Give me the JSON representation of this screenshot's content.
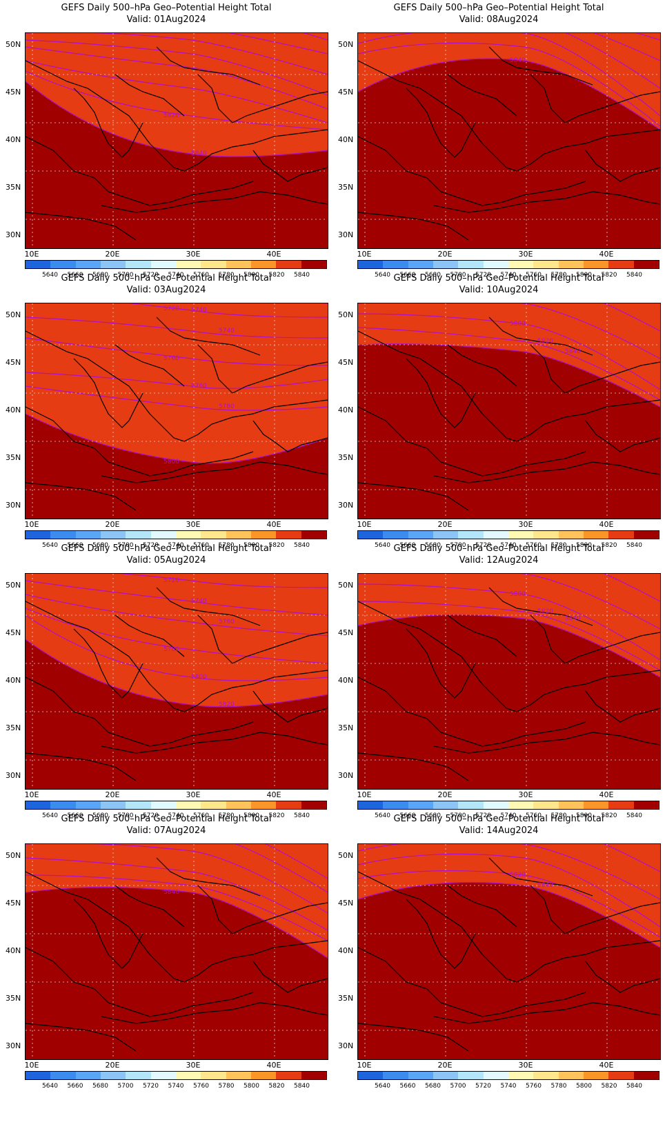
{
  "colors": {
    "bands": [
      "#1e64dc",
      "#3c8cf0",
      "#5aa5f5",
      "#8cc4f5",
      "#b4e6fa",
      "#e2fafe",
      "#fefab4",
      "#fee68c",
      "#fec35a",
      "#fa9628",
      "#e63c14",
      "#a00000"
    ],
    "contour": "#b010c8"
  },
  "colorbar": {
    "labels": [
      "5640",
      "5660",
      "5680",
      "5700",
      "5720",
      "5740",
      "5760",
      "5780",
      "5800",
      "5820",
      "5840"
    ]
  },
  "axes": {
    "lat_labels": [
      "50N",
      "45N",
      "40N",
      "35N",
      "30N"
    ],
    "lon_labels": [
      "10E",
      "20E",
      "30E",
      "40E"
    ]
  },
  "panels": [
    {
      "title": "GEFS Daily 500–hPa Geo–Potential Height Total",
      "valid": "Valid: 01Aug2024",
      "contour_labels": [
        "5820",
        "5840"
      ]
    },
    {
      "title": "GEFS Daily 500–hPa Geo–Potential Height Total",
      "valid": "Valid: 08Aug2024",
      "contour_labels": [
        "5840"
      ]
    },
    {
      "title": "GEFS Daily 500–hPa Geo–Potential Height Total",
      "valid": "Valid: 03Aug2024",
      "contour_labels": [
        "5720",
        "5740",
        "5740",
        "5760",
        "5760",
        "5780",
        "5800"
      ]
    },
    {
      "title": "GEFS Daily 500–hPa Geo–Potential Height Total",
      "valid": "Valid: 10Aug2024",
      "contour_labels": [
        "5800",
        "5820",
        "5840"
      ]
    },
    {
      "title": "GEFS Daily 500–hPa Geo–Potential Height Total",
      "valid": "Valid: 05Aug2024",
      "contour_labels": [
        "5720",
        "5740",
        "5760",
        "5780",
        "5800",
        "5820"
      ]
    },
    {
      "title": "GEFS Daily 500–hPa Geo–Potential Height Total",
      "valid": "Valid: 12Aug2024",
      "contour_labels": [
        "5800",
        "5820",
        "5840"
      ]
    },
    {
      "title": "GEFS Daily 500–hPa Geo–Potential Height Total",
      "valid": "Valid: 07Aug2024",
      "contour_labels": [
        "5840"
      ]
    },
    {
      "title": "GEFS Daily 500–hPa Geo–Potential Height Total",
      "valid": "Valid: 14Aug2024",
      "contour_labels": [
        "5820",
        "5840"
      ]
    }
  ]
}
